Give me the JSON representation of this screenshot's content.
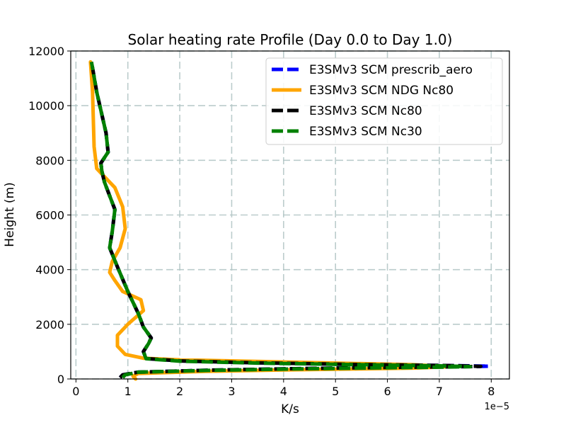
{
  "chart_data": {
    "type": "line",
    "title": "Solar heating rate Profile (Day 0.0 to Day 1.0)",
    "xlabel": "K/s",
    "ylabel": "Height (m)",
    "x_offset_label": "1e−5",
    "xlim": [
      -0.1,
      8.35
    ],
    "ylim": [
      0,
      12000
    ],
    "x_ticks": [
      0,
      1,
      2,
      3,
      4,
      5,
      6,
      7,
      8
    ],
    "x_tick_labels": [
      "0",
      "1",
      "2",
      "3",
      "4",
      "5",
      "6",
      "7",
      "8"
    ],
    "y_ticks": [
      0,
      2000,
      4000,
      6000,
      8000,
      10000,
      12000
    ],
    "y_tick_labels": [
      "0",
      "2000",
      "4000",
      "6000",
      "8000",
      "10000",
      "12000"
    ],
    "grid": true,
    "legend_position": "top-right",
    "series": [
      {
        "name": "E3SMv3 SCM prescrib_aero",
        "color": "#0000ff",
        "style": "dashed",
        "x": [
          0.85,
          0.9,
          1.2,
          2.5,
          4.0,
          5.5,
          7.0,
          7.8,
          7.95,
          7.2,
          5.5,
          3.5,
          2.0,
          1.35,
          1.3,
          1.4,
          1.45,
          1.3,
          1.2,
          1.0,
          0.8,
          0.65,
          0.7,
          0.75,
          0.65,
          0.55,
          0.5,
          0.48,
          0.62,
          0.58,
          0.4,
          0.3
        ],
        "y": [
          50,
          150,
          250,
          320,
          370,
          410,
          440,
          460,
          470,
          490,
          530,
          590,
          660,
          750,
          1000,
          1300,
          1500,
          1900,
          2400,
          3200,
          4100,
          4800,
          5400,
          6200,
          6700,
          7200,
          7600,
          7900,
          8300,
          9000,
          10500,
          11600
        ]
      },
      {
        "name": "E3SMv3 SCM NDG Nc80",
        "color": "#ffa500",
        "style": "solid",
        "x": [
          1.15,
          1.1,
          1.2,
          2.5,
          4.0,
          5.5,
          6.5,
          7.2,
          6.5,
          5.0,
          3.5,
          2.0,
          1.3,
          0.95,
          0.8,
          0.8,
          1.0,
          1.3,
          1.25,
          0.9,
          0.75,
          0.65,
          0.7,
          0.85,
          0.95,
          0.9,
          0.75,
          0.5,
          0.4,
          0.35,
          0.32,
          0.28
        ],
        "y": [
          0,
          100,
          200,
          280,
          330,
          370,
          400,
          450,
          520,
          580,
          640,
          700,
          760,
          900,
          1200,
          1600,
          2000,
          2500,
          2900,
          3200,
          3600,
          3900,
          4300,
          4800,
          5500,
          6300,
          7000,
          7500,
          7700,
          8500,
          10500,
          11600
        ]
      },
      {
        "name": "E3SMv3 SCM Nc80",
        "color": "#000000",
        "style": "dashed",
        "x": [
          0.85,
          0.9,
          1.2,
          2.5,
          4.0,
          5.5,
          7.0,
          7.8,
          7.2,
          5.5,
          3.5,
          2.0,
          1.35,
          1.3,
          1.4,
          1.45,
          1.3,
          1.2,
          1.0,
          0.8,
          0.65,
          0.7,
          0.75,
          0.65,
          0.55,
          0.5,
          0.48,
          0.62,
          0.58,
          0.4,
          0.3
        ],
        "y": [
          50,
          150,
          250,
          320,
          370,
          410,
          440,
          460,
          490,
          530,
          590,
          660,
          750,
          1000,
          1300,
          1500,
          1900,
          2400,
          3200,
          4100,
          4800,
          5400,
          6200,
          6700,
          7200,
          7600,
          7900,
          8300,
          9000,
          10500,
          11600
        ]
      },
      {
        "name": "E3SMv3 SCM Nc30",
        "color": "#008000",
        "style": "dashed",
        "x": [
          0.9,
          0.95,
          1.2,
          2.5,
          4.0,
          5.5,
          7.0,
          7.6,
          7.0,
          5.5,
          3.5,
          2.0,
          1.35,
          1.3,
          1.4,
          1.45,
          1.3,
          1.2,
          1.0,
          0.8,
          0.65,
          0.7,
          0.75,
          0.65,
          0.55,
          0.5,
          0.48,
          0.62,
          0.58,
          0.4,
          0.3
        ],
        "y": [
          50,
          150,
          250,
          310,
          360,
          400,
          430,
          450,
          480,
          520,
          580,
          650,
          740,
          1000,
          1300,
          1500,
          1900,
          2400,
          3200,
          4100,
          4800,
          5400,
          6200,
          6700,
          7200,
          7600,
          7900,
          8300,
          9000,
          10500,
          11600
        ]
      }
    ]
  }
}
